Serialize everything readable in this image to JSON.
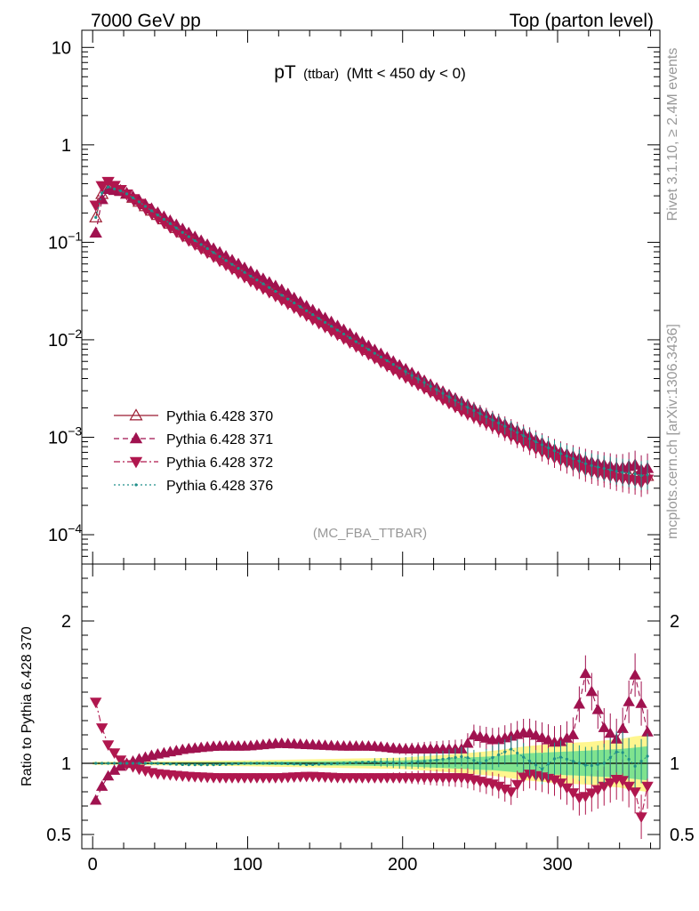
{
  "header": {
    "left": "7000 GeV pp",
    "right": "Top (parton level)"
  },
  "side_labels": {
    "rivet": "Rivet 3.1.10, ≥ 2.4M events",
    "mcplots": "mcplots.cern.ch [arXiv:1306.3436]"
  },
  "colors": {
    "s370": "#9b1b30",
    "s371": "#a0124f",
    "s372": "#b0174e",
    "s376": "#1f8f8a",
    "band_yellow": "#fff68f",
    "band_green": "#7fe38f"
  },
  "chart_data": [
    {
      "type": "scatter",
      "panel": "main",
      "title_main": "pT",
      "title_sub": "(ttbar)",
      "title_cond": "(Mtt < 450 dy < 0)",
      "watermark": "(MC_FBA_TTBAR)",
      "yscale": "log",
      "ylim": [
        5e-05,
        15
      ],
      "xlim": [
        -7,
        366
      ],
      "y_ticks": [
        {
          "v": 0.0001,
          "base": "10",
          "exp": "−4"
        },
        {
          "v": 0.001,
          "base": "10",
          "exp": "−3"
        },
        {
          "v": 0.01,
          "base": "10",
          "exp": "−2"
        },
        {
          "v": 0.1,
          "base": "10",
          "exp": "−1"
        },
        {
          "v": 1,
          "base": "1",
          "exp": ""
        },
        {
          "v": 10,
          "base": "10",
          "exp": ""
        }
      ],
      "legend_position": "lower-left",
      "series": [
        {
          "name": "Pythia 6.428 370",
          "marker": "triangle-up-open",
          "line": "solid",
          "colorKey": "s370",
          "x": [
            2,
            5,
            10,
            20,
            30,
            40,
            50,
            60,
            80,
            100,
            120,
            140,
            160,
            180,
            200,
            220,
            240,
            260,
            280,
            300,
            320,
            340,
            350,
            355,
            358
          ],
          "y": [
            0.18,
            0.3,
            0.37,
            0.33,
            0.26,
            0.2,
            0.155,
            0.12,
            0.075,
            0.047,
            0.03,
            0.019,
            0.012,
            0.0075,
            0.0048,
            0.0031,
            0.002,
            0.0014,
            0.00095,
            0.00068,
            0.0005,
            0.00042,
            0.0004,
            0.00038,
            0.0004
          ]
        },
        {
          "name": "Pythia 6.428 371",
          "marker": "triangle-up-filled",
          "line": "dashed",
          "colorKey": "s371",
          "x": [
            2,
            5,
            10,
            20,
            30,
            40,
            50,
            60,
            80,
            100,
            120,
            140,
            160,
            180,
            200,
            220,
            240,
            260,
            280,
            300,
            320,
            340,
            350,
            355,
            358
          ],
          "y": [
            0.125,
            0.26,
            0.35,
            0.33,
            0.27,
            0.21,
            0.166,
            0.13,
            0.082,
            0.052,
            0.034,
            0.021,
            0.0132,
            0.0082,
            0.0052,
            0.0033,
            0.0022,
            0.0015,
            0.00105,
            0.00072,
            0.00056,
            0.00048,
            0.00052,
            0.00045,
            0.00048
          ]
        },
        {
          "name": "Pythia 6.428 372",
          "marker": "triangle-down-filled",
          "line": "dashdot",
          "colorKey": "s372",
          "x": [
            2,
            5,
            10,
            20,
            30,
            40,
            50,
            60,
            80,
            100,
            120,
            140,
            160,
            180,
            200,
            220,
            240,
            260,
            280,
            300,
            320,
            340,
            350,
            355,
            358
          ],
          "y": [
            0.24,
            0.37,
            0.42,
            0.33,
            0.25,
            0.187,
            0.143,
            0.11,
            0.068,
            0.042,
            0.027,
            0.017,
            0.0108,
            0.0068,
            0.0043,
            0.0028,
            0.0018,
            0.00125,
            0.00085,
            0.0006,
            0.00045,
            0.00038,
            0.00036,
            0.00034,
            0.00037
          ]
        },
        {
          "name": "Pythia 6.428 376",
          "marker": "small-point",
          "line": "dotted",
          "colorKey": "s376",
          "x": [
            2,
            5,
            10,
            20,
            30,
            40,
            50,
            60,
            80,
            100,
            120,
            140,
            160,
            180,
            200,
            220,
            240,
            260,
            280,
            300,
            320,
            340,
            350,
            355,
            358
          ],
          "y": [
            0.18,
            0.31,
            0.37,
            0.33,
            0.26,
            0.2,
            0.156,
            0.12,
            0.075,
            0.047,
            0.03,
            0.019,
            0.012,
            0.0076,
            0.0049,
            0.0032,
            0.0021,
            0.00145,
            0.001,
            0.0007,
            0.00052,
            0.00044,
            0.00042,
            0.0004,
            0.00041
          ]
        }
      ]
    },
    {
      "type": "line",
      "panel": "ratio",
      "ylabel": "Ratio to Pythia 6.428 370",
      "ylim": [
        0.4,
        2.4
      ],
      "xlim": [
        -7,
        366
      ],
      "y_ticks": [
        {
          "v": 0.5,
          "label": "0.5"
        },
        {
          "v": 1,
          "label": "1"
        },
        {
          "v": 2,
          "label": "2"
        }
      ],
      "x_ticks": [
        {
          "v": 0,
          "label": "0"
        },
        {
          "v": 100,
          "label": "100"
        },
        {
          "v": 200,
          "label": "200"
        },
        {
          "v": 300,
          "label": "300"
        }
      ],
      "bands": {
        "x": [
          0,
          100,
          200,
          240,
          260,
          280,
          300,
          320,
          340,
          350,
          358
        ],
        "yellow_half": [
          0.01,
          0.02,
          0.04,
          0.07,
          0.09,
          0.12,
          0.14,
          0.15,
          0.17,
          0.19,
          0.2
        ],
        "green_half": [
          0.005,
          0.01,
          0.02,
          0.04,
          0.05,
          0.07,
          0.08,
          0.09,
          0.1,
          0.11,
          0.12
        ]
      },
      "series": [
        {
          "name": "Pythia 6.428 370",
          "colorKey": "s370",
          "x": [
            0,
            358
          ],
          "y": [
            1,
            1
          ]
        },
        {
          "name": "Pythia 6.428 371",
          "colorKey": "s371",
          "x": [
            2,
            5,
            10,
            15,
            20,
            30,
            40,
            50,
            60,
            80,
            100,
            120,
            140,
            160,
            180,
            200,
            220,
            240,
            245,
            260,
            280,
            300,
            310,
            318,
            330,
            340,
            350,
            358
          ],
          "y": [
            0.74,
            0.82,
            0.91,
            0.96,
            0.99,
            1.03,
            1.06,
            1.08,
            1.1,
            1.12,
            1.12,
            1.14,
            1.13,
            1.12,
            1.12,
            1.1,
            1.1,
            1.1,
            1.2,
            1.16,
            1.22,
            1.14,
            1.2,
            1.63,
            1.25,
            1.15,
            1.62,
            1.22
          ]
        },
        {
          "name": "Pythia 6.428 372",
          "colorKey": "s372",
          "x": [
            2,
            5,
            10,
            15,
            20,
            30,
            40,
            50,
            60,
            80,
            100,
            120,
            140,
            160,
            180,
            200,
            220,
            240,
            260,
            270,
            280,
            300,
            315,
            330,
            340,
            350,
            355,
            358
          ],
          "y": [
            1.43,
            1.28,
            1.13,
            1.06,
            1.0,
            0.96,
            0.93,
            0.92,
            0.91,
            0.9,
            0.9,
            0.9,
            0.91,
            0.9,
            0.9,
            0.9,
            0.9,
            0.9,
            0.85,
            0.8,
            0.93,
            0.88,
            0.75,
            0.84,
            0.9,
            0.8,
            0.58,
            0.84
          ]
        },
        {
          "name": "Pythia 6.428 376",
          "colorKey": "s376",
          "x": [
            2,
            20,
            40,
            60,
            80,
            100,
            120,
            140,
            160,
            180,
            200,
            220,
            240,
            250,
            270,
            290,
            300,
            320,
            330,
            340,
            350,
            358
          ],
          "y": [
            1.0,
            1.0,
            1.0,
            0.99,
            0.99,
            1.0,
            1.0,
            0.99,
            1.0,
            1.01,
            1.0,
            1.02,
            1.05,
            1.0,
            1.1,
            0.96,
            1.05,
            0.98,
            1.0,
            1.1,
            0.98,
            1.05
          ]
        }
      ]
    }
  ]
}
